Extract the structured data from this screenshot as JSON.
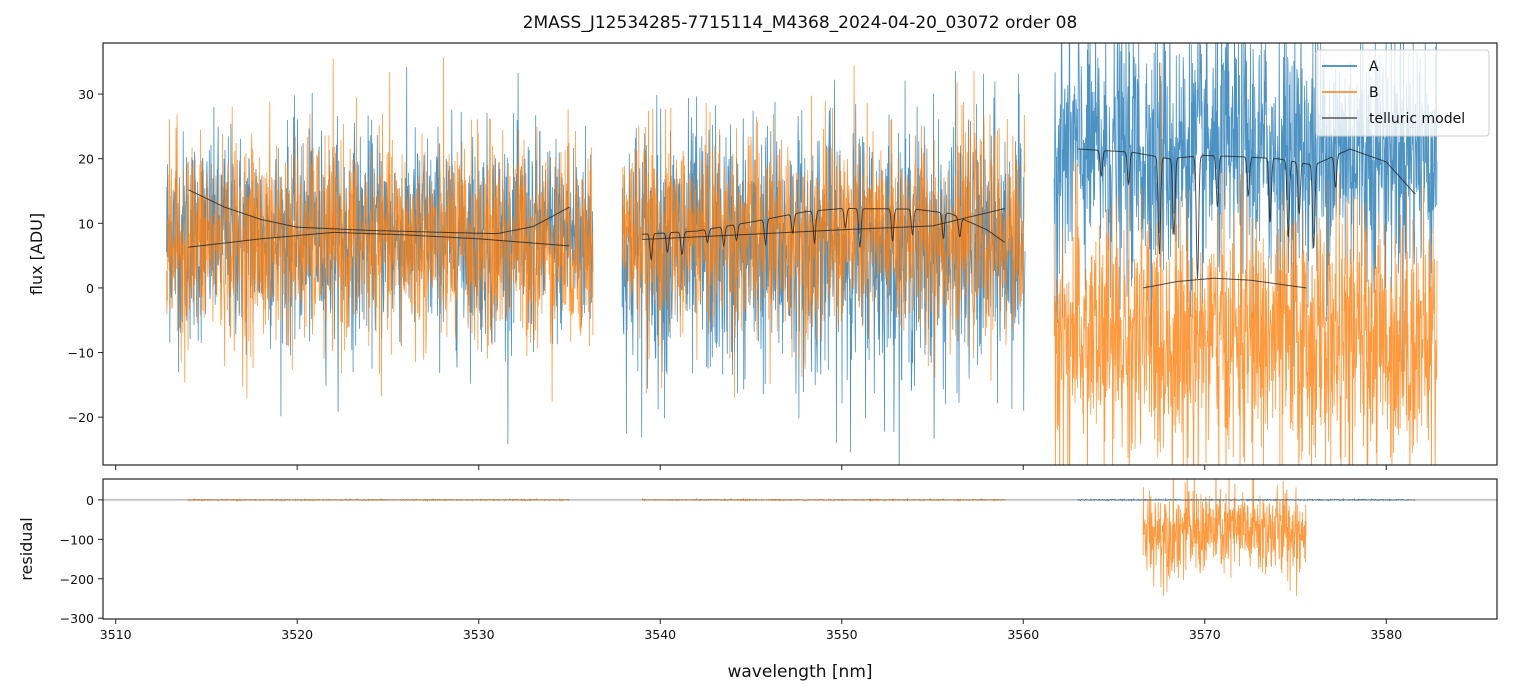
{
  "chart_data": [
    {
      "type": "line",
      "title": "2MASS_J12534285-7715114_M4368_2024-04-20_03072  order 08",
      "xlabel": "",
      "ylabel": "flux [ADU]",
      "xlim": [
        3509.3,
        3586.1
      ],
      "ylim": [
        -27.4,
        37.9
      ],
      "xticks": [
        3510,
        3520,
        3530,
        3540,
        3550,
        3560,
        3570,
        3580
      ],
      "yticks": [
        30,
        20,
        10,
        0,
        -10,
        -20
      ],
      "ytick_labels": [
        "30",
        "20",
        "10",
        "0",
        "−10",
        "−20"
      ],
      "legend": {
        "placement": "top-right",
        "entries": [
          "A",
          "B",
          "telluric model"
        ]
      },
      "colors": {
        "A": "#1f77b4",
        "B": "#ff7f0e",
        "telluric model": "#333333"
      },
      "series": [
        {
          "name": "A",
          "segments": [
            {
              "x": [
                3512.8,
                3536.3
              ],
              "mean": 8,
              "noise": 8
            },
            {
              "x": [
                3537.9,
                3560.1
              ],
              "mean": 6,
              "noise": 10
            },
            {
              "x": [
                3561.7,
                3582.8
              ],
              "mean": 21,
              "noise": 10
            }
          ]
        },
        {
          "name": "B",
          "segments": [
            {
              "x": [
                3512.8,
                3536.3
              ],
              "mean": 7,
              "noise": 8
            },
            {
              "x": [
                3537.9,
                3560.1
              ],
              "mean": 8,
              "noise": 8
            },
            {
              "x": [
                3561.7,
                3582.8
              ],
              "mean": -8,
              "noise": 10
            }
          ]
        }
      ],
      "telluric_model": [
        {
          "points": [
            [
              3514,
              15.2
            ],
            [
              3516,
              12.5
            ],
            [
              3518,
              10.6
            ],
            [
              3520,
              9.4
            ],
            [
              3524,
              8.9
            ],
            [
              3528,
              8.6
            ],
            [
              3531,
              8.4
            ],
            [
              3533,
              9.5
            ],
            [
              3535,
              12.5
            ]
          ],
          "dips": []
        },
        {
          "points": [
            [
              3514,
              6.3
            ],
            [
              3518,
              7.6
            ],
            [
              3522,
              8.6
            ],
            [
              3526,
              8.2
            ],
            [
              3530,
              7.6
            ],
            [
              3535,
              6.5
            ]
          ],
          "dips": []
        },
        {
          "points": [
            [
              3539,
              8.3
            ],
            [
              3542,
              8.8
            ],
            [
              3545,
              10.2
            ],
            [
              3548,
              11.8
            ],
            [
              3550,
              12.3
            ],
            [
              3554,
              12.2
            ],
            [
              3556,
              11.5
            ],
            [
              3558,
              9
            ],
            [
              3559,
              7
            ]
          ],
          "dips": [
            [
              3539.5,
              4
            ],
            [
              3540.4,
              3
            ],
            [
              3541.2,
              3.5
            ],
            [
              3542.6,
              2
            ],
            [
              3543.5,
              3
            ],
            [
              3544.2,
              2.5
            ],
            [
              3545.8,
              4
            ],
            [
              3547.3,
              3
            ],
            [
              3548.5,
              5
            ],
            [
              3550.2,
              3
            ],
            [
              3551,
              6
            ],
            [
              3552.8,
              5
            ],
            [
              3553.9,
              4
            ],
            [
              3555.6,
              4
            ],
            [
              3556.5,
              3
            ]
          ]
        },
        {
          "points": [
            [
              3539,
              7.5
            ],
            [
              3545,
              8.3
            ],
            [
              3550,
              9
            ],
            [
              3555,
              9.6
            ],
            [
              3559,
              12.3
            ]
          ],
          "dips": []
        },
        {
          "points": [
            [
              3563,
              21.5
            ],
            [
              3566,
              21
            ],
            [
              3568,
              20
            ],
            [
              3570,
              20.5
            ],
            [
              3572,
              20.3
            ],
            [
              3574,
              20
            ],
            [
              3576,
              19
            ],
            [
              3578,
              21.5
            ],
            [
              3580,
              19.5
            ],
            [
              3581.6,
              14.5
            ]
          ],
          "dips": [
            [
              3564.3,
              4
            ],
            [
              3565.8,
              5
            ],
            [
              3567.5,
              15
            ],
            [
              3568.3,
              12
            ],
            [
              3569.6,
              19
            ],
            [
              3570.7,
              8
            ],
            [
              3572.4,
              6
            ],
            [
              3573.6,
              10
            ],
            [
              3574.6,
              12
            ],
            [
              3575.2,
              8
            ],
            [
              3576,
              13
            ],
            [
              3577.2,
              5
            ]
          ]
        },
        {
          "points": [
            [
              3566.6,
              0
            ],
            [
              3568.5,
              1.0
            ],
            [
              3570.5,
              1.5
            ],
            [
              3572.5,
              1.2
            ],
            [
              3575.6,
              0
            ]
          ],
          "dips": []
        }
      ]
    },
    {
      "type": "line",
      "xlabel": "wavelength [nm]",
      "ylabel": "residual",
      "xlim": [
        3509.3,
        3586.1
      ],
      "ylim": [
        -302,
        53
      ],
      "xticks": [
        3510,
        3520,
        3530,
        3540,
        3550,
        3560,
        3570,
        3580
      ],
      "xtick_labels": [
        "3510",
        "3520",
        "3530",
        "3540",
        "3550",
        "3560",
        "3570",
        "3580"
      ],
      "yticks": [
        0,
        -100,
        -200,
        -300
      ],
      "ytick_labels": [
        "0",
        "−100",
        "−200",
        "−300"
      ],
      "series": [
        {
          "name": "A",
          "segments": [
            {
              "x": [
                3563,
                3581.6
              ],
              "mean": 0,
              "noise": 0.8
            }
          ]
        },
        {
          "name": "B",
          "segments": [
            {
              "x": [
                3514,
                3535
              ],
              "mean": 0,
              "noise": 0.8
            },
            {
              "x": [
                3539,
                3559
              ],
              "mean": 0,
              "noise": 0.8
            },
            {
              "x": [
                3566.6,
                3575.6
              ],
              "mean": -80,
              "noise": 60
            }
          ]
        }
      ],
      "zero_line": 0
    }
  ]
}
